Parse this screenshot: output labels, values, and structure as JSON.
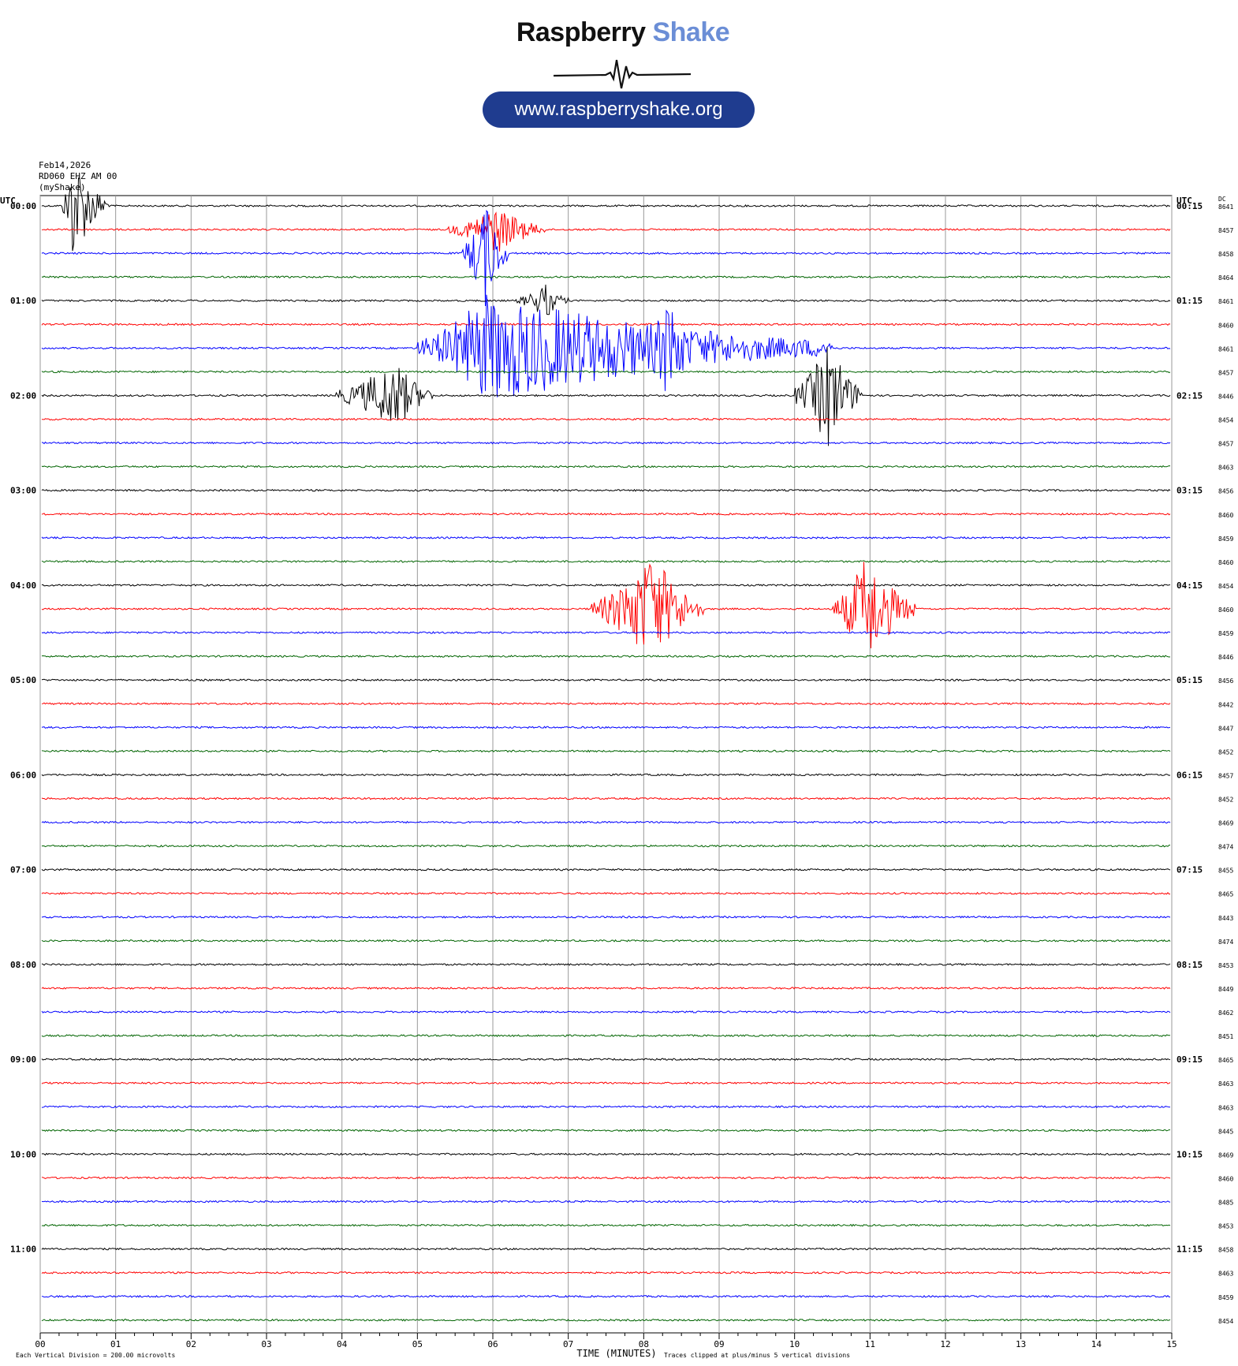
{
  "brand": {
    "name_part1": "Raspberry",
    "name_part2": "Shake",
    "url": "www.raspberryshake.org",
    "accent_color": "#6b8ed6",
    "badge_color": "#1f3c8f"
  },
  "header": {
    "date": "Feb14,2026",
    "station": "RD060 EHZ AM 00",
    "source": "(myShake)"
  },
  "footer": {
    "scale_note": "Each Vertical Division = 200.00 microvolts",
    "clip_note": "Traces clipped at plus/minus 5 vertical divisions"
  },
  "chart_data": {
    "type": "line",
    "title": "",
    "xlabel": "TIME (MINUTES)",
    "left_axis_label": "UTC",
    "right_axis_label": "UTC",
    "dc_label": "DC",
    "xlim": [
      0,
      15
    ],
    "x_ticks": [
      "00",
      "01",
      "02",
      "03",
      "04",
      "05",
      "06",
      "07",
      "08",
      "09",
      "10",
      "11",
      "12",
      "13",
      "14",
      "15"
    ],
    "grid": "vertical lines at each minute",
    "trace_colors": [
      "#000000",
      "#ff0000",
      "#0000ff",
      "#006400"
    ],
    "left_time_labels": [
      "00:00",
      "01:00",
      "02:00",
      "03:00",
      "04:00",
      "05:00",
      "06:00",
      "07:00",
      "08:00",
      "09:00",
      "10:00",
      "11:00"
    ],
    "right_time_labels": [
      "00:15",
      "01:15",
      "02:15",
      "03:15",
      "04:15",
      "05:15",
      "06:15",
      "07:15",
      "08:15",
      "09:15",
      "10:15",
      "11:15"
    ],
    "dc_values": [
      "8641",
      "8457",
      "8458",
      "8464",
      "8461",
      "8460",
      "8461",
      "8457",
      "8446",
      "8454",
      "8457",
      "8463",
      "8456",
      "8460",
      "8459",
      "8460",
      "8454",
      "8460",
      "8459",
      "8446",
      "8456",
      "8442",
      "8447",
      "8452",
      "8457",
      "8452",
      "8469",
      "8474",
      "8455",
      "8465",
      "8443",
      "8474",
      "8453",
      "8449",
      "8462",
      "8451",
      "8465",
      "8463",
      "8463",
      "8445",
      "8469",
      "8460",
      "8485",
      "8453",
      "8458",
      "8463",
      "8459",
      "8454"
    ],
    "events": [
      {
        "row": 0,
        "start_min": 0.3,
        "end_min": 0.9,
        "peak_min": 0.42,
        "amplitude_div": 5,
        "note": "clipped"
      },
      {
        "row": 1,
        "start_min": 5.4,
        "end_min": 6.7,
        "peak_min": 6.05,
        "amplitude_div": 2.2
      },
      {
        "row": 2,
        "start_min": 5.6,
        "end_min": 6.2,
        "peak_min": 5.9,
        "amplitude_div": 5,
        "note": "clipped"
      },
      {
        "row": 4,
        "start_min": 6.3,
        "end_min": 7.0,
        "peak_min": 6.7,
        "amplitude_div": 1.6
      },
      {
        "row": 6,
        "start_min": 5.0,
        "end_min": 10.5,
        "peak_min": 5.9,
        "amplitude_div": 5,
        "note": "clipped"
      },
      {
        "row": 6,
        "start_min": 7.9,
        "end_min": 8.7,
        "peak_min": 8.35,
        "amplitude_div": 5,
        "note": "clipped"
      },
      {
        "row": 8,
        "start_min": 3.9,
        "end_min": 5.2,
        "peak_min": 4.7,
        "amplitude_div": 3.2
      },
      {
        "row": 8,
        "start_min": 10.0,
        "end_min": 10.9,
        "peak_min": 10.45,
        "amplitude_div": 5,
        "note": "clipped"
      },
      {
        "row": 17,
        "start_min": 7.3,
        "end_min": 8.8,
        "peak_min": 8.1,
        "amplitude_div": 5,
        "note": "clipped"
      },
      {
        "row": 17,
        "start_min": 10.5,
        "end_min": 11.6,
        "peak_min": 10.95,
        "amplitude_div": 5,
        "note": "clipped"
      }
    ]
  }
}
